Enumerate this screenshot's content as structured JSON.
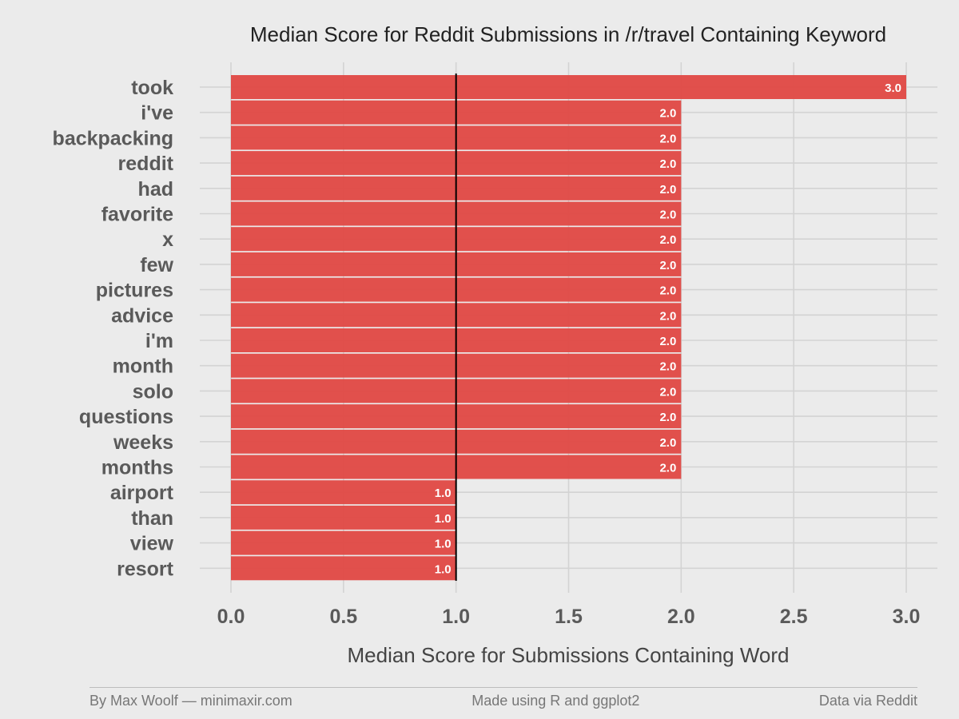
{
  "chart_data": {
    "type": "bar",
    "orientation": "horizontal",
    "title": "Median Score for Reddit Submissions in /r/travel Containing Keyword",
    "xlabel": "Median Score for Submissions Containing Word",
    "ylabel": "",
    "categories": [
      "took",
      "i've",
      "backpacking",
      "reddit",
      "had",
      "favorite",
      "x",
      "few",
      "pictures",
      "advice",
      "i'm",
      "month",
      "solo",
      "questions",
      "weeks",
      "months",
      "airport",
      "than",
      "view",
      "resort"
    ],
    "values": [
      3.0,
      2.0,
      2.0,
      2.0,
      2.0,
      2.0,
      2.0,
      2.0,
      2.0,
      2.0,
      2.0,
      2.0,
      2.0,
      2.0,
      2.0,
      2.0,
      1.0,
      1.0,
      1.0,
      1.0
    ],
    "data_labels": [
      "3.0",
      "2.0",
      "2.0",
      "2.0",
      "2.0",
      "2.0",
      "2.0",
      "2.0",
      "2.0",
      "2.0",
      "2.0",
      "2.0",
      "2.0",
      "2.0",
      "2.0",
      "2.0",
      "1.0",
      "1.0",
      "1.0",
      "1.0"
    ],
    "xlim": [
      0,
      3.0
    ],
    "x_ticks": [
      "0.0",
      "0.5",
      "1.0",
      "1.5",
      "2.0",
      "2.5",
      "3.0"
    ],
    "reference_line": 1.0,
    "grid": true,
    "colors": {
      "bar": "#e04a46",
      "background": "#ebebeb",
      "grid": "#d3d3d3",
      "reference": "#000000",
      "label_text": "#5a5a5a"
    }
  },
  "footer": {
    "left": "By Max Woolf — minimaxir.com",
    "center": "Made using R and ggplot2",
    "right": "Data via Reddit"
  }
}
